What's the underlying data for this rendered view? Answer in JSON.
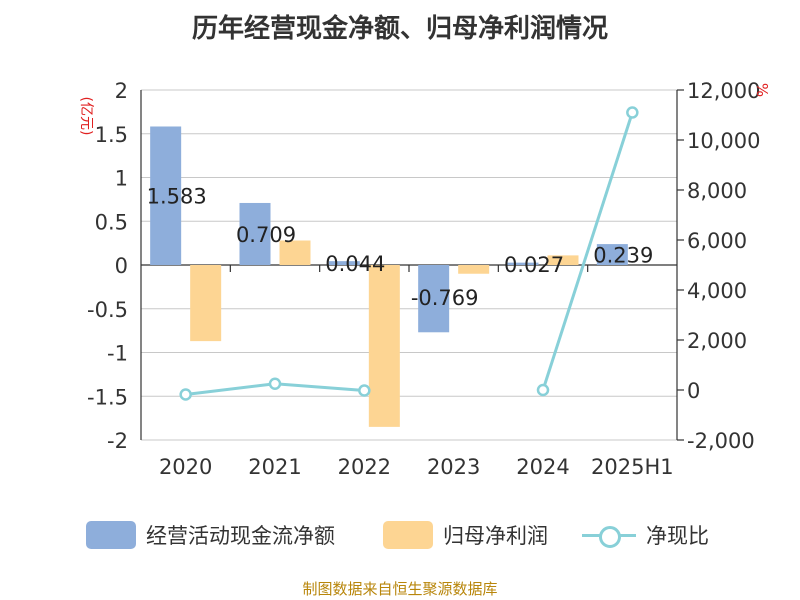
{
  "chart_data": {
    "type": "bar",
    "title": "历年经营现金净额、归母净利润情况",
    "categories": [
      "2020",
      "2021",
      "2022",
      "2023",
      "2024",
      "2025H1"
    ],
    "left_axis": {
      "unit_label": "(亿元)",
      "ylim": [
        -2,
        2
      ],
      "ticks": [
        "-2",
        "-1.5",
        "-1",
        "-0.5",
        "0",
        "0.5",
        "1",
        "1.5",
        "2"
      ]
    },
    "right_axis": {
      "unit_label": "%",
      "ylim": [
        -2000,
        12000
      ],
      "ticks": [
        "-2,000",
        "0",
        "2,000",
        "4,000",
        "6,000",
        "8,000",
        "10,000",
        "12,000"
      ]
    },
    "series": [
      {
        "name": "经营活动现金流净额",
        "type": "bar",
        "axis": "left",
        "color": "#8eaedb",
        "values": [
          1.583,
          0.709,
          0.044,
          -0.769,
          0.027,
          0.239
        ],
        "labels": [
          "1.583",
          "0.709",
          "0.044",
          "-0.769",
          "0.027",
          "0.239"
        ]
      },
      {
        "name": "归母净利润",
        "type": "bar",
        "axis": "left",
        "color": "#fdd593",
        "values": [
          -0.87,
          0.28,
          -1.85,
          -0.1,
          0.11,
          null
        ]
      },
      {
        "name": "净现比",
        "type": "line",
        "axis": "right",
        "color": "#88d0d8",
        "values": [
          -180,
          250,
          -20,
          null,
          0,
          11100
        ]
      }
    ],
    "grid": true,
    "legend_position": "bottom"
  },
  "footer": {
    "source": "制图数据来自恒生聚源数据库"
  }
}
